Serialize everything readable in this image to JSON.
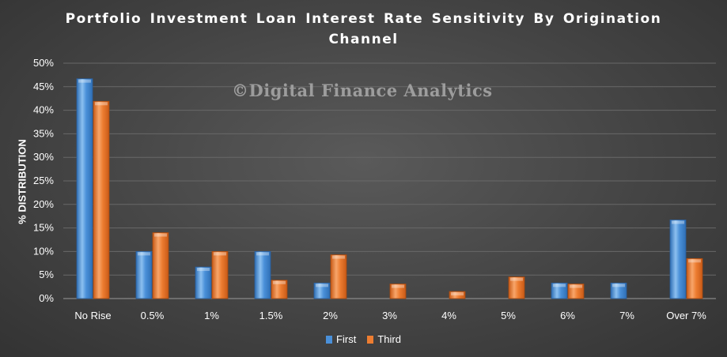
{
  "chart_data": {
    "type": "bar",
    "title": "Portfolio Investment Loan Interest Rate Sensitivity By Origination Channel",
    "title_lines": [
      "Portfolio Investment Loan Interest Rate Sensitivity By Origination",
      "Channel"
    ],
    "watermark": "©Digital Finance Analytics",
    "xlabel": "",
    "ylabel": "% DISTRIBUTION",
    "ylim": [
      0,
      50
    ],
    "yticks": [
      "0%",
      "5%",
      "10%",
      "15%",
      "20%",
      "25%",
      "30%",
      "35%",
      "40%",
      "45%",
      "50%"
    ],
    "grid": true,
    "legend_position": "bottom",
    "categories": [
      "No Rise",
      "0.5%",
      "1%",
      "1.5%",
      "2%",
      "3%",
      "4%",
      "5%",
      "6%",
      "7%",
      "Over 7%"
    ],
    "series": [
      {
        "name": "First",
        "color": "#4a90d9",
        "values": [
          46.7,
          10,
          6.7,
          10,
          3.3,
          0,
          0,
          0,
          3.3,
          3.3,
          16.7
        ]
      },
      {
        "name": "Third",
        "color": "#ed7d31",
        "values": [
          41.9,
          14,
          10,
          3.9,
          9.3,
          3.1,
          1.5,
          4.6,
          3.1,
          0,
          8.5
        ]
      }
    ]
  }
}
